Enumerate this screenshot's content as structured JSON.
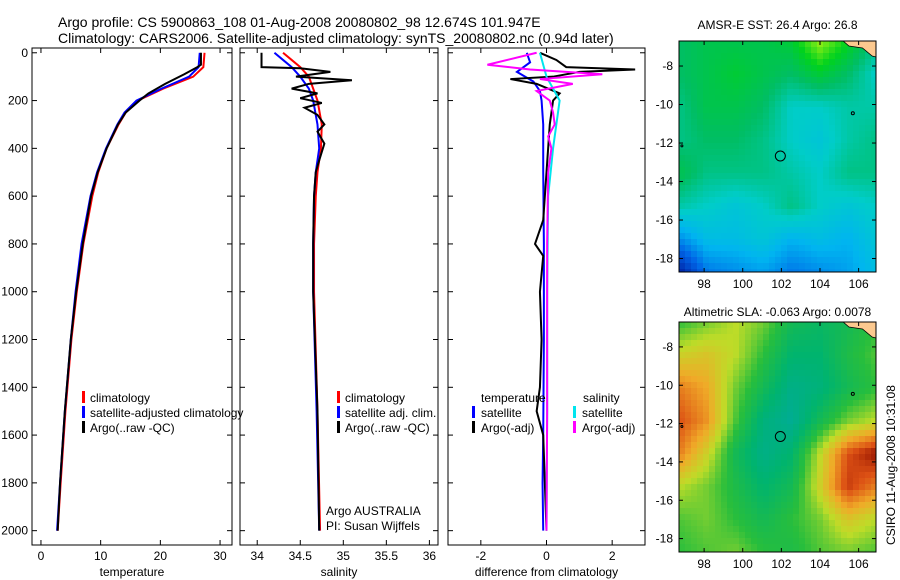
{
  "title": {
    "line1": "Argo profile: CS 5900863_108 01-Aug-2008 20080802_98 12.674S 101.947E",
    "line2": "Climatology: CARS2006. Satellite-adjusted climatology: synTS_20080802.nc (0.94d later)"
  },
  "footer_stamp": "CSIRO 11-Aug-2008 10:31:08",
  "colors": {
    "climatology": "#ff0000",
    "satellite": "#0000ff",
    "argo": "#000000",
    "sal_satellite": "#00e5ee",
    "sal_argo": "#ff00ff"
  },
  "chart_data": [
    {
      "type": "line",
      "id": "temperature",
      "xlabel": "temperature",
      "ylabel": "",
      "xlim": [
        -1.5,
        32
      ],
      "ylim": [
        2060,
        -20
      ],
      "xticks": [
        0,
        10,
        20,
        30
      ],
      "yticks": [
        0,
        200,
        400,
        600,
        800,
        1000,
        1200,
        1400,
        1600,
        1800,
        2000
      ],
      "legend": [
        "climatology",
        "satellite-adjusted climatology",
        "Argo(..raw -QC)"
      ],
      "series": [
        {
          "name": "climatology",
          "color": "#ff0000",
          "points": [
            [
              0,
              27.4
            ],
            [
              60,
              27.2
            ],
            [
              100,
              25.5
            ],
            [
              150,
              20.5
            ],
            [
              200,
              16.2
            ],
            [
              250,
              14.2
            ],
            [
              300,
              13
            ],
            [
              400,
              11
            ],
            [
              500,
              9.6
            ],
            [
              600,
              8.6
            ],
            [
              800,
              7.1
            ],
            [
              1000,
              6
            ],
            [
              1200,
              5.1
            ],
            [
              1500,
              4.1
            ],
            [
              1800,
              3.3
            ],
            [
              2000,
              2.8
            ]
          ]
        },
        {
          "name": "satellite-adjusted climatology",
          "color": "#0000ff",
          "points": [
            [
              0,
              26.6
            ],
            [
              60,
              26.4
            ],
            [
              100,
              24.8
            ],
            [
              150,
              20.2
            ],
            [
              200,
              16
            ],
            [
              250,
              14
            ],
            [
              300,
              12.8
            ],
            [
              400,
              10.9
            ],
            [
              500,
              9.4
            ],
            [
              600,
              8.3
            ],
            [
              800,
              6.8
            ],
            [
              1000,
              5.8
            ],
            [
              1200,
              5
            ],
            [
              1500,
              4
            ],
            [
              1800,
              3.2
            ],
            [
              2000,
              2.7
            ]
          ]
        },
        {
          "name": "Argo(..raw -QC)",
          "color": "#000000",
          "points": [
            [
              0,
              26.8
            ],
            [
              50,
              26.8
            ],
            [
              60,
              26.2
            ],
            [
              90,
              24
            ],
            [
              130,
              20.8
            ],
            [
              170,
              18
            ],
            [
              200,
              16.5
            ],
            [
              250,
              14.2
            ],
            [
              300,
              12.9
            ],
            [
              400,
              11
            ],
            [
              500,
              9.5
            ],
            [
              600,
              8.4
            ],
            [
              800,
              7
            ],
            [
              1000,
              5.9
            ],
            [
              1200,
              5
            ],
            [
              1500,
              4
            ],
            [
              1800,
              3.2
            ],
            [
              2000,
              2.8
            ]
          ]
        }
      ]
    },
    {
      "type": "line",
      "id": "salinity",
      "xlabel": "salinity",
      "xlim": [
        33.8,
        36.1
      ],
      "ylim": [
        2060,
        -20
      ],
      "xticks": [
        34,
        34.5,
        35,
        35.5,
        36
      ],
      "legend": [
        "climatology",
        "satellite adj. clim.",
        "Argo(..raw -QC)"
      ],
      "annotation": [
        "Argo AUSTRALIA",
        "PI: Susan Wijffels"
      ],
      "series": [
        {
          "name": "climatology",
          "color": "#ff0000",
          "points": [
            [
              0,
              34.3
            ],
            [
              30,
              34.4
            ],
            [
              60,
              34.5
            ],
            [
              100,
              34.6
            ],
            [
              150,
              34.65
            ],
            [
              200,
              34.7
            ],
            [
              300,
              34.75
            ],
            [
              400,
              34.74
            ],
            [
              500,
              34.7
            ],
            [
              600,
              34.68
            ],
            [
              800,
              34.66
            ],
            [
              1000,
              34.66
            ],
            [
              1500,
              34.7
            ],
            [
              2000,
              34.73
            ]
          ]
        },
        {
          "name": "satellite adj. clim.",
          "color": "#0000ff",
          "points": [
            [
              0,
              34.2
            ],
            [
              30,
              34.3
            ],
            [
              60,
              34.4
            ],
            [
              100,
              34.5
            ],
            [
              150,
              34.6
            ],
            [
              200,
              34.65
            ],
            [
              300,
              34.7
            ],
            [
              400,
              34.72
            ],
            [
              500,
              34.68
            ],
            [
              600,
              34.66
            ],
            [
              800,
              34.65
            ],
            [
              1000,
              34.65
            ],
            [
              1500,
              34.69
            ],
            [
              2000,
              34.72
            ]
          ]
        },
        {
          "name": "Argo(..raw -QC)",
          "color": "#000000",
          "points": [
            [
              0,
              34.05
            ],
            [
              60,
              34.05
            ],
            [
              65,
              34.5
            ],
            [
              80,
              34.85
            ],
            [
              100,
              34.45
            ],
            [
              115,
              35.1
            ],
            [
              130,
              34.6
            ],
            [
              150,
              34.4
            ],
            [
              170,
              34.7
            ],
            [
              190,
              34.5
            ],
            [
              210,
              34.75
            ],
            [
              230,
              34.55
            ],
            [
              260,
              34.7
            ],
            [
              300,
              34.78
            ],
            [
              330,
              34.7
            ],
            [
              380,
              34.78
            ],
            [
              450,
              34.72
            ],
            [
              500,
              34.68
            ],
            [
              600,
              34.66
            ],
            [
              800,
              34.65
            ],
            [
              1000,
              34.65
            ],
            [
              1500,
              34.7
            ],
            [
              2000,
              34.72
            ]
          ]
        }
      ]
    },
    {
      "type": "line",
      "id": "difference",
      "xlabel": "difference from climatology",
      "xlim": [
        -3,
        3
      ],
      "ylim": [
        2060,
        -20
      ],
      "xticks": [
        -2,
        0,
        2
      ],
      "legend": {
        "temperature_header": "temperature",
        "salinity_header": "salinity",
        "temp_items": [
          "satellite",
          "Argo(-adj)"
        ],
        "sal_items": [
          "satellite",
          "Argo(-adj)"
        ]
      },
      "series": [
        {
          "name": "temperature satellite",
          "color": "#0000ff",
          "points": [
            [
              0,
              -0.6
            ],
            [
              40,
              -0.5
            ],
            [
              80,
              -0.9
            ],
            [
              120,
              -0.4
            ],
            [
              160,
              -0.2
            ],
            [
              200,
              -0.15
            ],
            [
              300,
              -0.1
            ],
            [
              500,
              -0.1
            ],
            [
              800,
              -0.08
            ],
            [
              1200,
              -0.08
            ],
            [
              1600,
              -0.1
            ],
            [
              1800,
              -0.12
            ],
            [
              2000,
              -0.1
            ]
          ]
        },
        {
          "name": "temperature Argo(-adj)",
          "color": "#000000",
          "points": [
            [
              0,
              -0.2
            ],
            [
              30,
              0.3
            ],
            [
              60,
              0.6
            ],
            [
              70,
              2.7
            ],
            [
              80,
              1.0
            ],
            [
              100,
              0.2
            ],
            [
              110,
              -1.1
            ],
            [
              130,
              -0.3
            ],
            [
              170,
              0.4
            ],
            [
              200,
              0.2
            ],
            [
              300,
              0.1
            ],
            [
              500,
              0
            ],
            [
              700,
              -0.1
            ],
            [
              800,
              -0.35
            ],
            [
              850,
              -0.1
            ],
            [
              1000,
              -0.2
            ],
            [
              1200,
              -0.15
            ],
            [
              1400,
              -0.2
            ],
            [
              1500,
              -0.3
            ],
            [
              1600,
              -0.1
            ],
            [
              2000,
              0
            ]
          ]
        },
        {
          "name": "salinity satellite",
          "color": "#00e5ee",
          "points": [
            [
              0,
              -0.2
            ],
            [
              50,
              -0.1
            ],
            [
              100,
              0
            ],
            [
              150,
              0.2
            ],
            [
              200,
              0.4
            ],
            [
              300,
              0.3
            ],
            [
              400,
              0.2
            ],
            [
              600,
              0.05
            ],
            [
              1000,
              0.02
            ],
            [
              1500,
              0.02
            ],
            [
              2000,
              0
            ]
          ]
        },
        {
          "name": "salinity Argo(-adj)",
          "color": "#ff00ff",
          "points": [
            [
              0,
              -0.3
            ],
            [
              50,
              -1.8
            ],
            [
              70,
              -0.5
            ],
            [
              90,
              1.7
            ],
            [
              110,
              -0.2
            ],
            [
              130,
              0.8
            ],
            [
              160,
              -0.3
            ],
            [
              200,
              0.1
            ],
            [
              250,
              0.2
            ],
            [
              300,
              0.25
            ],
            [
              350,
              0.05
            ],
            [
              400,
              0.15
            ],
            [
              500,
              0.05
            ],
            [
              800,
              0.02
            ],
            [
              1500,
              0.02
            ],
            [
              2000,
              0
            ]
          ]
        }
      ]
    },
    {
      "type": "heatmap",
      "id": "sst_map",
      "title": "AMSR-E SST: 26.4 Argo: 26.8",
      "xlim": [
        96.7,
        106.9
      ],
      "ylim": [
        -18.7,
        -6.7
      ],
      "xticks": [
        98,
        100,
        102,
        104,
        106
      ],
      "yticks": [
        -8,
        -10,
        -12,
        -14,
        -16,
        -18
      ],
      "marker": [
        101.947,
        -12.674
      ],
      "values": [
        [
          26.6,
          26.7,
          26.7,
          26.7,
          26.8,
          27.3,
          26.9,
          26.5
        ],
        [
          26.6,
          26.7,
          26.8,
          26.7,
          26.6,
          26.8,
          26.6,
          26.3
        ],
        [
          26.5,
          26.7,
          26.7,
          26.6,
          26.3,
          26.3,
          26.4,
          26.4
        ],
        [
          26.5,
          26.6,
          26.6,
          26.5,
          26.3,
          26.2,
          26.4,
          26.5
        ],
        [
          26.7,
          26.5,
          26.5,
          26.5,
          26.4,
          26.3,
          26.5,
          26.5
        ],
        [
          26.4,
          26.3,
          26.2,
          26.3,
          26.5,
          26.3,
          26.2,
          26.3
        ],
        [
          25.8,
          26.1,
          26.1,
          26.2,
          26.0,
          26.1,
          26.0,
          26.2
        ],
        [
          25.1,
          25.7,
          25.8,
          25.9,
          25.7,
          25.8,
          25.9,
          26.1
        ]
      ]
    },
    {
      "type": "heatmap",
      "id": "sla_map",
      "title": "Altimetric SLA: -0.063 Argo: 0.0078",
      "xlim": [
        96.7,
        106.9
      ],
      "ylim": [
        -18.7,
        -6.7
      ],
      "xticks": [
        98,
        100,
        102,
        104,
        106
      ],
      "yticks": [
        -8,
        -10,
        -12,
        -14,
        -16,
        -18
      ],
      "marker": [
        101.947,
        -12.674
      ],
      "values": [
        [
          0.0,
          0.02,
          0.04,
          0.02,
          -0.02,
          -0.03,
          -0.02,
          0.0
        ],
        [
          0.05,
          0.06,
          0.04,
          0.0,
          -0.04,
          -0.04,
          -0.01,
          0.01
        ],
        [
          0.1,
          0.08,
          0.02,
          -0.02,
          -0.06,
          -0.05,
          -0.02,
          0.0
        ],
        [
          0.12,
          0.09,
          0.01,
          -0.05,
          -0.07,
          -0.02,
          0.02,
          0.04
        ],
        [
          0.1,
          0.05,
          -0.02,
          -0.06,
          -0.04,
          0.04,
          0.12,
          0.15
        ],
        [
          0.04,
          0.02,
          -0.01,
          -0.04,
          -0.02,
          0.05,
          0.13,
          0.1
        ],
        [
          0.01,
          0.02,
          0.0,
          -0.02,
          0.0,
          0.02,
          0.06,
          0.04
        ],
        [
          0.0,
          0.01,
          0.02,
          0.0,
          -0.01,
          0.01,
          0.02,
          0.01
        ]
      ]
    }
  ]
}
